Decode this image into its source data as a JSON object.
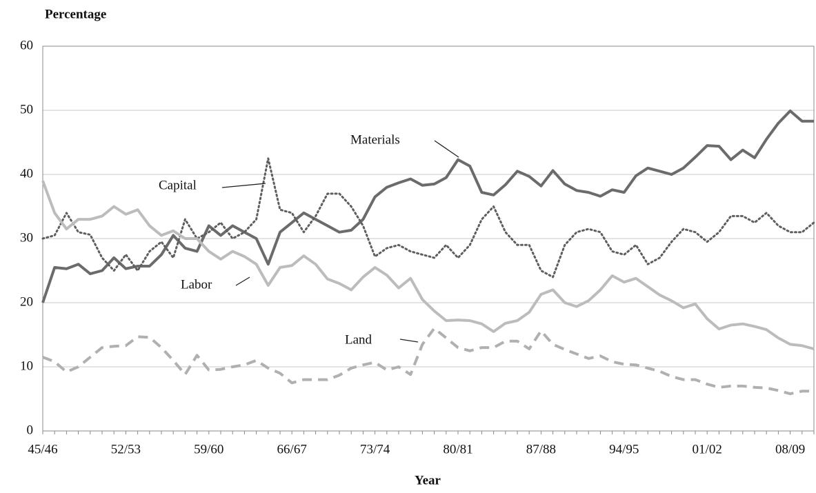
{
  "chart_data": {
    "type": "line",
    "y_label": "Percentage",
    "x_label": "Year",
    "categories": [
      "45/46",
      null,
      null,
      null,
      null,
      null,
      null,
      "52/53",
      null,
      null,
      null,
      null,
      null,
      null,
      "59/60",
      null,
      null,
      null,
      null,
      null,
      null,
      "66/67",
      null,
      null,
      null,
      null,
      null,
      null,
      "73/74",
      null,
      null,
      null,
      null,
      null,
      null,
      "80/81",
      null,
      null,
      null,
      null,
      null,
      null,
      "87/88",
      null,
      null,
      null,
      null,
      null,
      null,
      "94/95",
      null,
      null,
      null,
      null,
      null,
      null,
      "01/02",
      null,
      null,
      null,
      null,
      null,
      null,
      "08/09",
      null,
      null
    ],
    "series": [
      {
        "name": "Materials",
        "color": "#6b6b6b",
        "style": "solid",
        "values": [
          20,
          25.5,
          25.3,
          26,
          24.5,
          25,
          27,
          25.3,
          25.7,
          25.7,
          27.5,
          30.5,
          28.5,
          28,
          32,
          30.5,
          32,
          31,
          30,
          26,
          31,
          32.5,
          34,
          33,
          32,
          31,
          31.3,
          33,
          36.5,
          38,
          38.7,
          39.3,
          38.3,
          38.5,
          39.5,
          42.3,
          41.3,
          37.2,
          36.8,
          38.4,
          40.5,
          39.7,
          38.2,
          40.6,
          38.5,
          37.5,
          37.2,
          36.6,
          37.6,
          37.2,
          39.8,
          41,
          40.5,
          40,
          41,
          42.7,
          44.5,
          44.4,
          42.3,
          43.8,
          42.6,
          45.5,
          48,
          49.9,
          48.3,
          48.3
        ]
      },
      {
        "name": "Capital",
        "color": "#5e5e5e",
        "style": "dotted",
        "values": [
          30,
          30.5,
          34,
          31,
          30.6,
          27,
          25,
          27.5,
          25,
          28,
          29.5,
          27,
          33,
          30,
          31,
          32.5,
          30,
          31,
          33,
          42.5,
          34.5,
          34,
          31,
          33.5,
          37,
          37,
          35,
          32,
          27.2,
          28.5,
          29,
          28,
          27.5,
          27,
          29,
          27,
          29,
          33,
          35,
          31,
          29,
          29,
          25,
          24,
          29,
          31,
          31.5,
          31,
          28,
          27.5,
          29,
          26,
          27,
          29.5,
          31.5,
          31,
          29.5,
          31,
          33.5,
          33.5,
          32.5,
          34,
          32,
          31,
          31,
          32.5
        ]
      },
      {
        "name": "Labor",
        "color": "#bcbcbc",
        "style": "solid",
        "values": [
          39,
          34,
          31.5,
          33,
          33,
          33.5,
          35,
          33.8,
          34.5,
          32,
          30.5,
          31.2,
          30,
          30,
          28,
          26.8,
          28,
          27.2,
          26,
          22.7,
          25.5,
          25.8,
          27.3,
          26,
          23.7,
          23,
          22,
          24,
          25.5,
          24.3,
          22.3,
          23.8,
          20.5,
          18.7,
          17.2,
          17.3,
          17.2,
          16.7,
          15.5,
          16.8,
          17.2,
          18.5,
          21.3,
          22,
          20,
          19.4,
          20.3,
          22,
          24.2,
          23.2,
          23.8,
          22.5,
          21.2,
          20.3,
          19.2,
          19.8,
          17.5,
          15.9,
          16.5,
          16.7,
          16.3,
          15.8,
          14.5,
          13.5,
          13.3,
          12.8
        ]
      },
      {
        "name": "Land",
        "color": "#b0b0b0",
        "style": "dashed",
        "values": [
          11.5,
          10.8,
          9.2,
          10,
          11.5,
          13,
          13.2,
          13.3,
          14.7,
          14.6,
          13,
          11,
          8.8,
          11.8,
          9.5,
          9.6,
          10,
          10.3,
          11,
          9.8,
          9,
          7.5,
          8,
          8,
          8,
          8.7,
          9.8,
          10.3,
          10.7,
          9.5,
          10,
          8.8,
          13.5,
          16,
          14.5,
          13,
          12.5,
          13,
          13,
          14,
          14,
          12.8,
          15.6,
          13.5,
          12.7,
          12,
          11.3,
          11.7,
          10.8,
          10.4,
          10.3,
          9.8,
          9.3,
          8.5,
          8,
          8,
          7.3,
          6.8,
          7,
          7,
          6.8,
          6.7,
          6.3,
          5.8,
          6.2,
          6.2
        ]
      }
    ],
    "ylim": [
      0,
      60
    ],
    "yticks": [
      0,
      10,
      20,
      30,
      40,
      50,
      60
    ],
    "grid": true
  }
}
